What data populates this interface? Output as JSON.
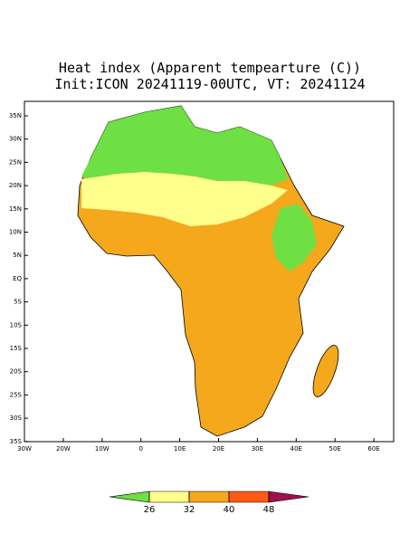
{
  "header": {
    "title": "Heat index (Apparent tempearture (C))",
    "subtitle": "Init:ICON 20241119-00UTC, VT: 20241124"
  },
  "map": {
    "lat_ticks": [
      {
        "value": 35,
        "label": "35N"
      },
      {
        "value": 30,
        "label": "30N"
      },
      {
        "value": 25,
        "label": "25N"
      },
      {
        "value": 20,
        "label": "20N"
      },
      {
        "value": 15,
        "label": "15N"
      },
      {
        "value": 10,
        "label": "10N"
      },
      {
        "value": 5,
        "label": "5N"
      },
      {
        "value": 0,
        "label": "EQ"
      },
      {
        "value": -5,
        "label": "5S"
      },
      {
        "value": -10,
        "label": "10S"
      },
      {
        "value": -15,
        "label": "15S"
      },
      {
        "value": -20,
        "label": "20S"
      },
      {
        "value": -25,
        "label": "25S"
      },
      {
        "value": -30,
        "label": "30S"
      },
      {
        "value": -35,
        "label": "35S"
      }
    ],
    "lon_ticks": [
      {
        "value": -30,
        "label": "30W"
      },
      {
        "value": -20,
        "label": "20W"
      },
      {
        "value": -10,
        "label": "10W"
      },
      0,
      {
        "value": 10,
        "label": "10E"
      },
      {
        "value": 20,
        "label": "20E"
      },
      {
        "value": 30,
        "label": "30E"
      },
      {
        "value": 40,
        "label": "40E"
      },
      {
        "value": 50,
        "label": "50E"
      },
      {
        "value": 60,
        "label": "60E"
      }
    ]
  },
  "colorbar": {
    "colors": [
      "#6ee044",
      "#ffff8c",
      "#f5a81c",
      "#ff5a14",
      "#a0104c"
    ],
    "ticks": [
      26,
      32,
      40,
      48
    ]
  }
}
